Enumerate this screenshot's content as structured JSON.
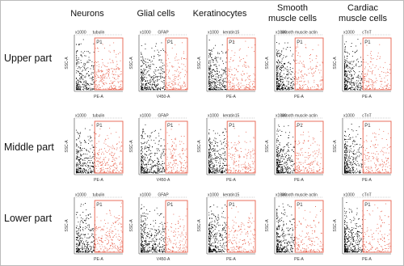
{
  "columns": [
    {
      "header": [
        "Neurons"
      ],
      "marker": "tubulin",
      "x_axis": "PE-A"
    },
    {
      "header": [
        "Glial cells"
      ],
      "marker": "GFAP",
      "x_axis": "V450-A"
    },
    {
      "header": [
        "Keratinocytes"
      ],
      "marker": "keratin15",
      "x_axis": "PE-A"
    },
    {
      "header": [
        "Smooth",
        "muscle cells"
      ],
      "marker": "smooth muscle actin",
      "x_axis": "PE-A"
    },
    {
      "header": [
        "Cardiac",
        "muscle cells"
      ],
      "marker": "cTnT",
      "x_axis": "PE-A"
    }
  ],
  "rows": [
    {
      "label": "Upper part"
    },
    {
      "label": "Middle part"
    },
    {
      "label": "Lower part"
    }
  ],
  "gate_label": "P1",
  "y_axis": "SSC-A",
  "y_scale": "x1000"
}
